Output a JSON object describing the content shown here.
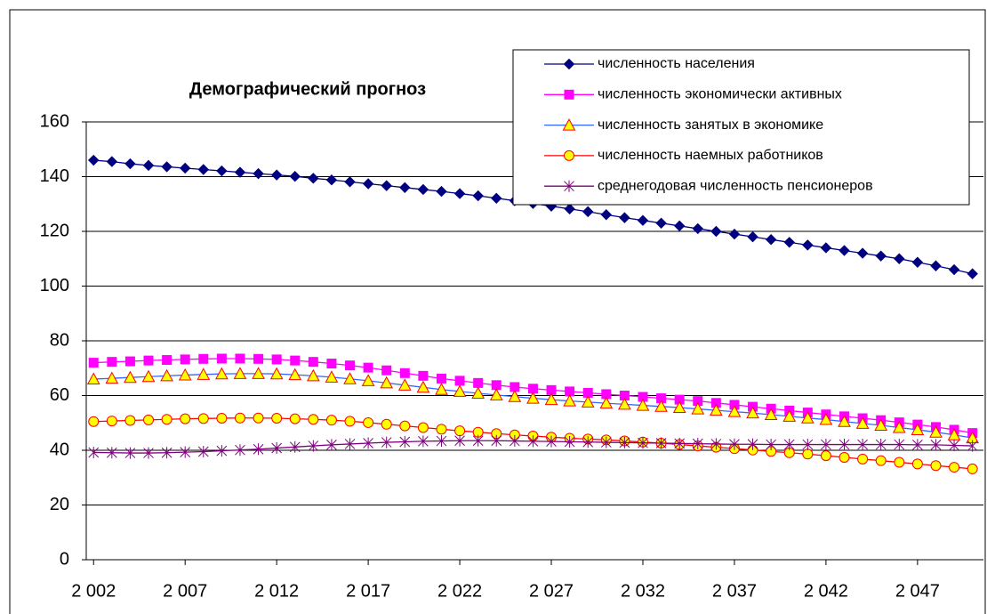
{
  "chart_data": {
    "type": "line",
    "title": "Демографический прогноз",
    "x": [
      2002,
      2003,
      2004,
      2005,
      2006,
      2007,
      2008,
      2009,
      2010,
      2011,
      2012,
      2013,
      2014,
      2015,
      2016,
      2017,
      2018,
      2019,
      2020,
      2021,
      2022,
      2023,
      2024,
      2025,
      2026,
      2027,
      2028,
      2029,
      2030,
      2031,
      2032,
      2033,
      2034,
      2035,
      2036,
      2037,
      2038,
      2039,
      2040,
      2041,
      2042,
      2043,
      2044,
      2045,
      2046,
      2047,
      2048,
      2049,
      2050
    ],
    "series": [
      {
        "name": "численность населения",
        "color": "#000080",
        "marker": "diamond",
        "marker_fill": "#000080",
        "values": [
          146,
          145.5,
          144.7,
          144.1,
          143.6,
          143.1,
          142.6,
          142.1,
          141.6,
          141.1,
          140.6,
          140.1,
          139.4,
          138.8,
          138.1,
          137.4,
          136.7,
          136,
          135.3,
          134.6,
          133.8,
          133,
          132.1,
          131.2,
          130.2,
          129.2,
          128.2,
          127.2,
          126.1,
          125,
          124,
          123,
          122,
          121,
          120,
          119,
          118,
          117,
          116,
          115,
          114,
          113,
          112,
          111,
          110,
          108.7,
          107.4,
          106,
          104.5
        ]
      },
      {
        "name": "численность экономически активных",
        "color": "#ff00ff",
        "marker": "square",
        "marker_fill": "#ff00ff",
        "values": [
          72,
          72.3,
          72.5,
          72.8,
          73,
          73.2,
          73.4,
          73.5,
          73.5,
          73.4,
          73.2,
          72.8,
          72.3,
          71.7,
          71,
          70.2,
          69.2,
          68.2,
          67.2,
          66.2,
          65.4,
          64.6,
          63.8,
          63.1,
          62.5,
          62,
          61.5,
          61,
          60.5,
          60,
          59.5,
          59,
          58.5,
          58,
          57.3,
          56.6,
          55.9,
          55.2,
          54.5,
          53.8,
          53.1,
          52.4,
          51.7,
          51,
          50.2,
          49.4,
          48.5,
          47.5,
          46.3
        ]
      },
      {
        "name": "численность занятых в экономике",
        "color": "#3366ff",
        "marker": "triangle",
        "marker_fill": "#ffff00",
        "marker_stroke": "#ff0000",
        "values": [
          66,
          66.3,
          66.6,
          66.9,
          67.2,
          67.5,
          67.7,
          67.9,
          68,
          68,
          67.9,
          67.6,
          67.2,
          66.7,
          66.1,
          65.4,
          64.6,
          63.8,
          63,
          62.2,
          61.5,
          60.8,
          60.2,
          59.6,
          59,
          58.5,
          58,
          57.6,
          57.2,
          56.8,
          56.4,
          56,
          55.6,
          55.1,
          54.6,
          54.1,
          53.6,
          53,
          52.4,
          51.8,
          51.2,
          50.5,
          49.8,
          49.1,
          48.3,
          47.5,
          46.6,
          45.6,
          44.5
        ]
      },
      {
        "name": "численность наемных работников",
        "color": "#ff0000",
        "marker": "circle",
        "marker_fill": "#ffff00",
        "marker_stroke": "#ff0000",
        "values": [
          50.5,
          50.7,
          50.9,
          51.1,
          51.3,
          51.5,
          51.6,
          51.7,
          51.8,
          51.8,
          51.7,
          51.5,
          51.3,
          51,
          50.6,
          50.1,
          49.5,
          48.9,
          48.3,
          47.7,
          47.1,
          46.6,
          46.1,
          45.6,
          45.2,
          44.8,
          44.4,
          44.1,
          43.8,
          43.4,
          43,
          42.6,
          42.1,
          41.6,
          41.1,
          40.6,
          40.1,
          39.6,
          39.1,
          38.6,
          38,
          37.4,
          36.8,
          36.2,
          35.6,
          35,
          34.4,
          33.8,
          33.2
        ]
      },
      {
        "name": "среднегодовая численность пенсионеров",
        "color": "#800080",
        "marker": "star",
        "marker_fill": "none",
        "values": [
          39.2,
          39.1,
          39,
          39,
          39.1,
          39.3,
          39.5,
          39.8,
          40.1,
          40.4,
          40.8,
          41.2,
          41.6,
          42,
          42.3,
          42.6,
          42.9,
          43.1,
          43.3,
          43.4,
          43.5,
          43.5,
          43.5,
          43.4,
          43.3,
          43.2,
          43.1,
          43,
          42.9,
          42.8,
          42.7,
          42.6,
          42.5,
          42.4,
          42.3,
          42.2,
          42.2,
          42.1,
          42.1,
          42.1,
          42.1,
          42.1,
          42.1,
          42.1,
          42.1,
          42,
          42,
          41.8,
          41.6
        ]
      }
    ],
    "xlim": [
      2001.6,
      2050.6
    ],
    "xticks": [
      {
        "value": 2002,
        "label": "2 002"
      },
      {
        "value": 2007,
        "label": "2 007"
      },
      {
        "value": 2012,
        "label": "2 012"
      },
      {
        "value": 2017,
        "label": "2 017"
      },
      {
        "value": 2022,
        "label": "2 022"
      },
      {
        "value": 2027,
        "label": "2 027"
      },
      {
        "value": 2032,
        "label": "2 032"
      },
      {
        "value": 2037,
        "label": "2 037"
      },
      {
        "value": 2042,
        "label": "2 042"
      },
      {
        "value": 2047,
        "label": "2 047"
      }
    ],
    "ylim": [
      0,
      160
    ],
    "yticks": [
      0,
      20,
      40,
      60,
      80,
      100,
      120,
      140,
      160
    ],
    "grid": true,
    "legend": "top-right"
  }
}
